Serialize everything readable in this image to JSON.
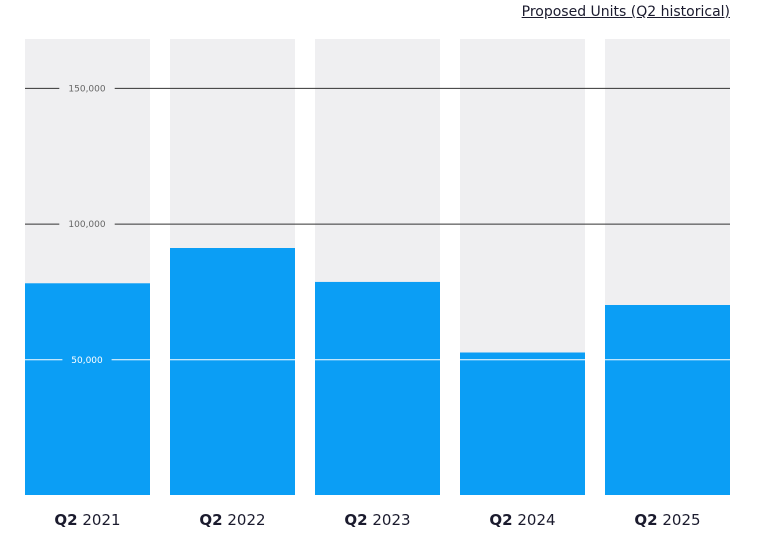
{
  "chart_data": {
    "type": "bar",
    "title": "Proposed Units (Q2 historical)",
    "xlabel": "",
    "ylabel": "",
    "categories": [
      {
        "prefix": "Q2",
        "year": "2021"
      },
      {
        "prefix": "Q2",
        "year": "2022"
      },
      {
        "prefix": "Q2",
        "year": "2023"
      },
      {
        "prefix": "Q2",
        "year": "2024"
      },
      {
        "prefix": "Q2",
        "year": "2025"
      }
    ],
    "values": [
      78000,
      91000,
      78500,
      52500,
      70000
    ],
    "ylim": [
      0,
      168000
    ],
    "yticks": [
      {
        "value": 50000,
        "label": "50,000"
      },
      {
        "value": 100000,
        "label": "100,000"
      },
      {
        "value": 150000,
        "label": "150,000"
      }
    ],
    "grid": true,
    "legend": "none",
    "colors": {
      "bar": "#0b9ef5",
      "track": "#efeff1",
      "gridline": "#333333",
      "gridline_over_bar": "#ffffff",
      "tick_text": "#666666",
      "tick_text_over_bar": "#ffffff",
      "axis_text": "#1b1b2e"
    }
  }
}
